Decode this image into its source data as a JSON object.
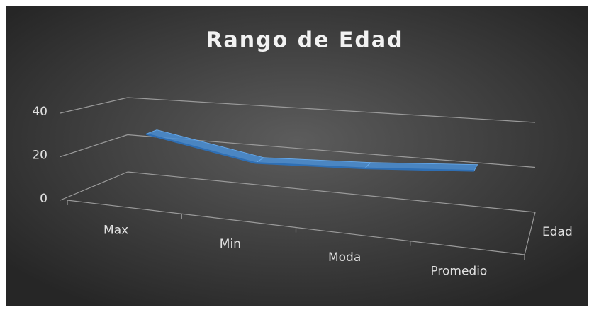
{
  "chart_data": {
    "type": "line3d",
    "title": "Rango de Edad",
    "categories": [
      "Max",
      "Min",
      "Moda",
      "Promedio"
    ],
    "series": [
      {
        "name": "Edad",
        "color": "#4a8fd6",
        "values": [
          29,
          20,
          22,
          25
        ]
      }
    ],
    "ylim": [
      0,
      40
    ],
    "yticks": [
      0,
      20,
      40
    ],
    "grid": true,
    "legend": "right"
  }
}
